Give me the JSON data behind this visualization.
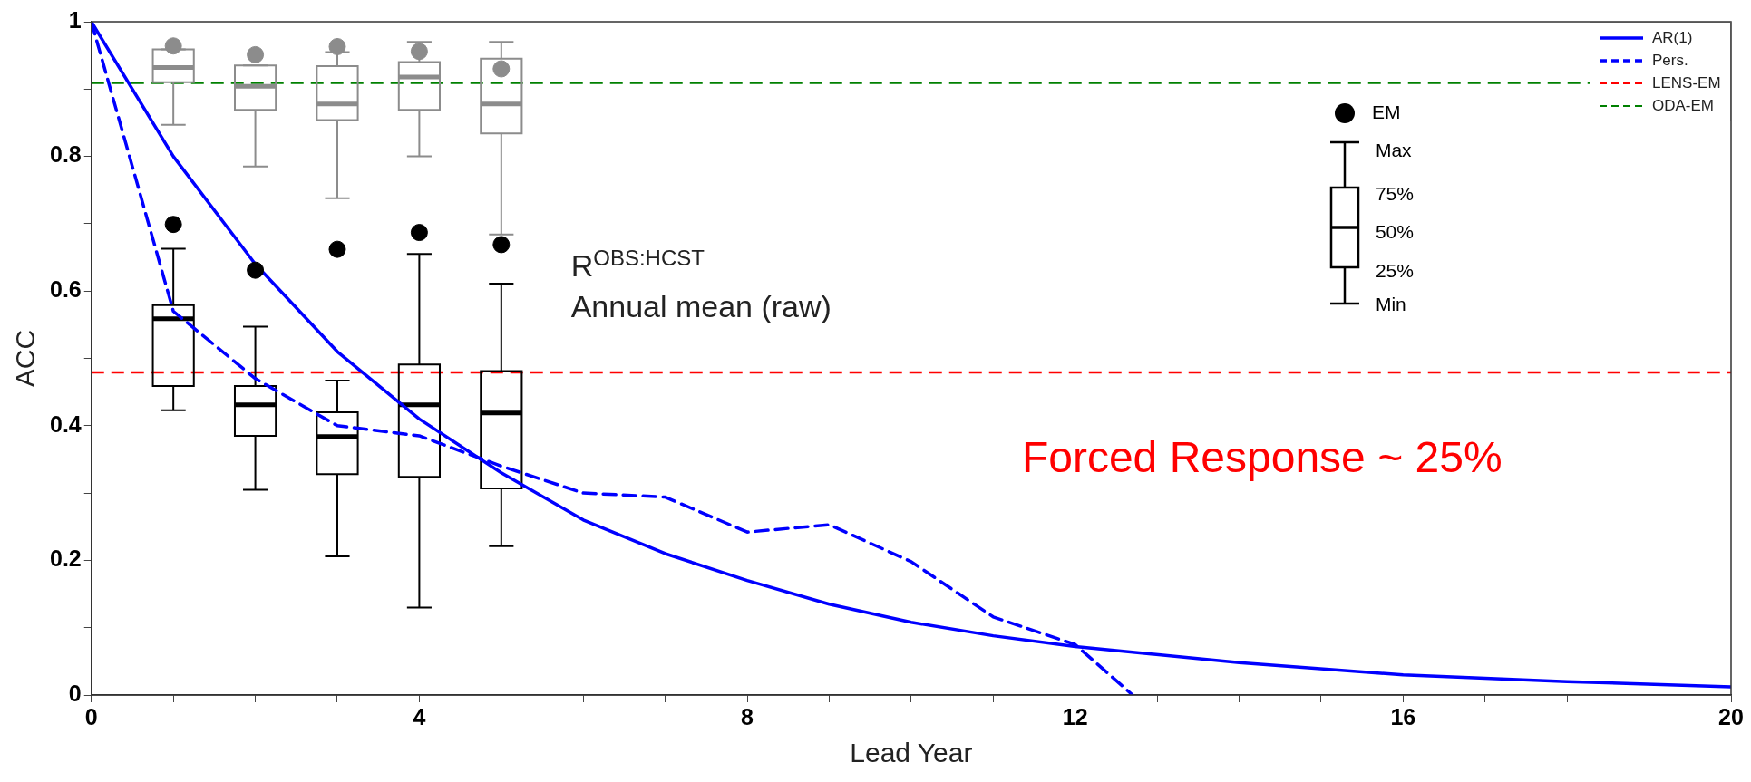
{
  "chart_data": {
    "type": "line",
    "xlabel": "Lead Year",
    "ylabel": "ACC",
    "xlim": [
      0,
      20
    ],
    "ylim": [
      0,
      1
    ],
    "xticks": [
      0,
      {
        "value": 1,
        "label": null
      },
      {
        "value": 2,
        "label": null
      },
      {
        "value": 3,
        "label": null
      },
      4,
      {
        "value": 5,
        "label": null
      },
      {
        "value": 6,
        "label": null
      },
      {
        "value": 7,
        "label": null
      },
      8,
      {
        "value": 9,
        "label": null
      },
      {
        "value": 10,
        "label": null
      },
      {
        "value": 11,
        "label": null
      },
      12,
      {
        "value": 13,
        "label": null
      },
      {
        "value": 14,
        "label": null
      },
      {
        "value": 15,
        "label": null
      },
      16,
      {
        "value": 17,
        "label": null
      },
      {
        "value": 18,
        "label": null
      },
      {
        "value": 19,
        "label": null
      },
      20
    ],
    "yticks": [
      0,
      {
        "value": 0.1,
        "label": null
      },
      0.2,
      {
        "value": 0.3,
        "label": null
      },
      0.4,
      {
        "value": 0.5,
        "label": null
      },
      0.6,
      {
        "value": 0.7,
        "label": null
      },
      0.8,
      {
        "value": 0.9,
        "label": null
      },
      1
    ],
    "grid": false,
    "legend": "top right",
    "series": [
      {
        "name": "AR(1)",
        "color": "#0000ff",
        "line_style": "solid",
        "x": [
          0,
          1,
          2,
          3,
          4,
          5,
          6,
          7,
          8,
          9,
          10,
          11,
          12,
          14,
          16,
          18,
          20
        ],
        "values": [
          1,
          0.8,
          0.64,
          0.51,
          0.41,
          0.33,
          0.26,
          0.21,
          0.17,
          0.135,
          0.108,
          0.088,
          0.072,
          0.048,
          0.03,
          0.02,
          0.012
        ]
      },
      {
        "name": "Pers.",
        "color": "#0000ff",
        "line_style": "dashed",
        "x": [
          0,
          1,
          2,
          3,
          4,
          5,
          6,
          7,
          8,
          9,
          10,
          11,
          12,
          12.7
        ],
        "values": [
          1,
          0.57,
          0.47,
          0.4,
          0.385,
          0.34,
          0.3,
          0.294,
          0.242,
          0.253,
          0.198,
          0.116,
          0.075,
          0
        ]
      },
      {
        "type": "box",
        "color": "#000000",
        "x": [
          1,
          2,
          3,
          4,
          5
        ],
        "boxes": [
          {
            "low": 0.423,
            "q1": 0.459,
            "median": 0.559,
            "q3": 0.579,
            "high": 0.663
          },
          {
            "low": 0.305,
            "q1": 0.385,
            "median": 0.431,
            "q3": 0.459,
            "high": 0.547
          },
          {
            "low": 0.206,
            "q1": 0.328,
            "median": 0.384,
            "q3": 0.42,
            "high": 0.467
          },
          {
            "low": 0.13,
            "q1": 0.324,
            "median": 0.431,
            "q3": 0.491,
            "high": 0.655
          },
          {
            "low": 0.221,
            "q1": 0.307,
            "median": 0.419,
            "q3": 0.481,
            "high": 0.611
          }
        ]
      },
      {
        "type": "box",
        "color": "#8c8c8c",
        "x": [
          1,
          2,
          3,
          4,
          5
        ],
        "boxes": [
          {
            "low": 0.847,
            "q1": 0.91,
            "median": 0.932,
            "q3": 0.959,
            "high": 0.959
          },
          {
            "low": 0.785,
            "q1": 0.869,
            "median": 0.904,
            "q3": 0.935,
            "high": 0.935
          },
          {
            "low": 0.738,
            "q1": 0.854,
            "median": 0.878,
            "q3": 0.934,
            "high": 0.955
          },
          {
            "low": 0.8,
            "q1": 0.869,
            "median": 0.918,
            "q3": 0.94,
            "high": 0.97
          },
          {
            "low": 0.684,
            "q1": 0.834,
            "median": 0.878,
            "q3": 0.945,
            "high": 0.97
          }
        ]
      },
      {
        "type": "scatter",
        "color": "#000000",
        "marker": "circle",
        "x": [
          1,
          2,
          3,
          4,
          5
        ],
        "values": [
          0.699,
          0.631,
          0.662,
          0.687,
          0.669
        ]
      },
      {
        "type": "scatter",
        "color": "#8c8c8c",
        "marker": "circle",
        "x": [
          1,
          2,
          3,
          4,
          5
        ],
        "values": [
          0.964,
          0.951,
          0.963,
          0.956,
          0.93
        ]
      }
    ],
    "ref_lines": [
      {
        "axis": "y",
        "value": 0.479,
        "label": "LENS-EM",
        "color": "#ff0000",
        "line_style": "dashed"
      },
      {
        "axis": "y",
        "value": 0.909,
        "label": "ODA-EM",
        "color": "#008000",
        "line_style": "dashed"
      }
    ],
    "annotations": [
      "R$^{OBS:HCST}$",
      "Annual mean (raw)",
      "Forced Response ~ 25%",
      "EM",
      "Max",
      "75%",
      "50%",
      "25%",
      "Min"
    ]
  }
}
